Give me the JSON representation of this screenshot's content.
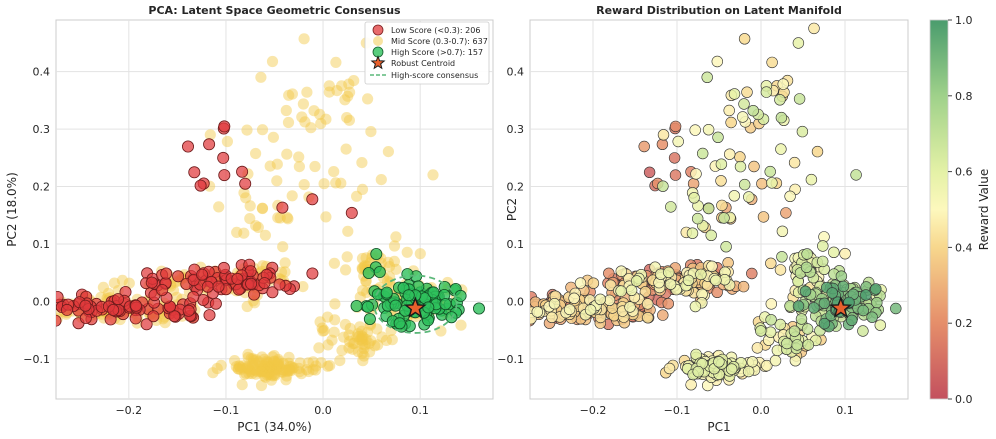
{
  "chart_data": [
    {
      "type": "scatter",
      "title": "PCA: Latent Space Geometric Consensus",
      "xlabel": "PC1 (34.0%)",
      "ylabel": "PC2 (18.0%)",
      "xlim": [
        -0.275,
        0.175
      ],
      "ylim": [
        -0.17,
        0.49
      ],
      "xticks": [
        -0.2,
        -0.1,
        0.0,
        0.1
      ],
      "xtick_labels": [
        "−0.2",
        "−0.1",
        "0.0",
        "0.1"
      ],
      "yticks": [
        -0.1,
        0.0,
        0.1,
        0.2,
        0.3,
        0.4
      ],
      "ytick_labels": [
        "−0.1",
        "0.0",
        "0.1",
        "0.2",
        "0.3",
        "0.4"
      ],
      "grid": true,
      "legend_position": "top-right",
      "series": [
        {
          "name": "Low Score (<0.3): 206",
          "color": "#e0393b",
          "count": 206
        },
        {
          "name": "Mid Score (0.3-0.7): 637",
          "color": "#f2c744",
          "count": 637
        },
        {
          "name": "High Score (>0.7): 157",
          "color": "#2ec05c",
          "count": 157
        }
      ],
      "annotations": [
        {
          "name": "Robust Centroid",
          "type": "star",
          "x": 0.095,
          "y": -0.012,
          "color": "#e8602c"
        },
        {
          "name": "High-score consensus",
          "type": "ellipse",
          "center": [
            0.095,
            -0.005
          ],
          "width": 0.085,
          "height": 0.1,
          "color": "#5cb87a"
        }
      ]
    },
    {
      "type": "scatter",
      "title": "Reward Distribution on Latent Manifold",
      "xlabel": "PC1",
      "ylabel": "PC2",
      "xlim": [
        -0.275,
        0.175
      ],
      "ylim": [
        -0.17,
        0.49
      ],
      "xticks": [
        -0.2,
        -0.1,
        0.0,
        0.1
      ],
      "xtick_labels": [
        "−0.2",
        "−0.1",
        "0.0",
        "0.1"
      ],
      "yticks": [
        -0.1,
        0.0,
        0.1,
        0.2,
        0.3,
        0.4
      ],
      "ytick_labels": [
        "−0.1",
        "0.0",
        "0.1",
        "0.2",
        "0.3",
        "0.4"
      ],
      "grid": true,
      "colormap": "RdYlGn",
      "colorbar": {
        "label": "Reward Value",
        "range": [
          0.0,
          1.0
        ],
        "ticks": [
          0.0,
          0.2,
          0.4,
          0.6,
          0.8,
          1.0
        ],
        "tick_labels": [
          "0.0",
          "0.2",
          "0.4",
          "0.6",
          "0.8",
          "1.0"
        ]
      },
      "annotations": [
        {
          "name": "Robust Centroid",
          "type": "star",
          "x": 0.095,
          "y": -0.012,
          "color": "#e8602c"
        }
      ]
    }
  ],
  "legend": [
    {
      "label": "Low Score (<0.3): 206",
      "kind": "marker",
      "color": "#e0393b"
    },
    {
      "label": "Mid Score (0.3-0.7): 637",
      "kind": "marker",
      "color": "#f2c744"
    },
    {
      "label": "High Score (>0.7): 157",
      "kind": "marker",
      "color": "#2ec05c"
    },
    {
      "label": "Robust Centroid",
      "kind": "star",
      "color": "#e8602c"
    },
    {
      "label": "High-score consensus",
      "kind": "dashed",
      "color": "#5cb87a"
    }
  ],
  "clusters": [
    {
      "center": [
        -0.225,
        -0.012
      ],
      "spread": [
        0.028,
        0.014
      ],
      "count": 130,
      "reward": [
        0.08,
        0.55
      ]
    },
    {
      "center": [
        -0.155,
        -0.015
      ],
      "spread": [
        0.018,
        0.011
      ],
      "count": 45,
      "reward": [
        0.06,
        0.5
      ]
    },
    {
      "center": [
        -0.125,
        0.035
      ],
      "spread": [
        0.035,
        0.012
      ],
      "count": 110,
      "reward": [
        0.08,
        0.6
      ]
    },
    {
      "center": [
        -0.075,
        0.035
      ],
      "spread": [
        0.022,
        0.014
      ],
      "count": 60,
      "reward": [
        0.1,
        0.6
      ]
    },
    {
      "center": [
        -0.055,
        -0.115
      ],
      "spread": [
        0.024,
        0.01
      ],
      "count": 120,
      "reward": [
        0.4,
        0.62
      ]
    },
    {
      "center": [
        0.095,
        -0.005
      ],
      "spread": [
        0.025,
        0.018
      ],
      "count": 150,
      "reward": [
        0.55,
        1.0
      ]
    },
    {
      "center": [
        0.055,
        0.045
      ],
      "spread": [
        0.018,
        0.028
      ],
      "count": 60,
      "reward": [
        0.4,
        0.75
      ]
    },
    {
      "center": [
        0.035,
        -0.065
      ],
      "spread": [
        0.02,
        0.015
      ],
      "count": 50,
      "reward": [
        0.35,
        0.7
      ]
    },
    {
      "center": [
        0.0,
        0.35
      ],
      "spread": [
        0.04,
        0.06
      ],
      "count": 40,
      "reward": [
        0.35,
        0.7
      ]
    },
    {
      "center": [
        -0.04,
        0.2
      ],
      "spread": [
        0.045,
        0.06
      ],
      "count": 45,
      "reward": [
        0.25,
        0.7
      ]
    },
    {
      "center": [
        -0.12,
        0.25
      ],
      "spread": [
        0.03,
        0.035
      ],
      "count": 10,
      "reward": [
        0.05,
        0.25
      ]
    }
  ]
}
